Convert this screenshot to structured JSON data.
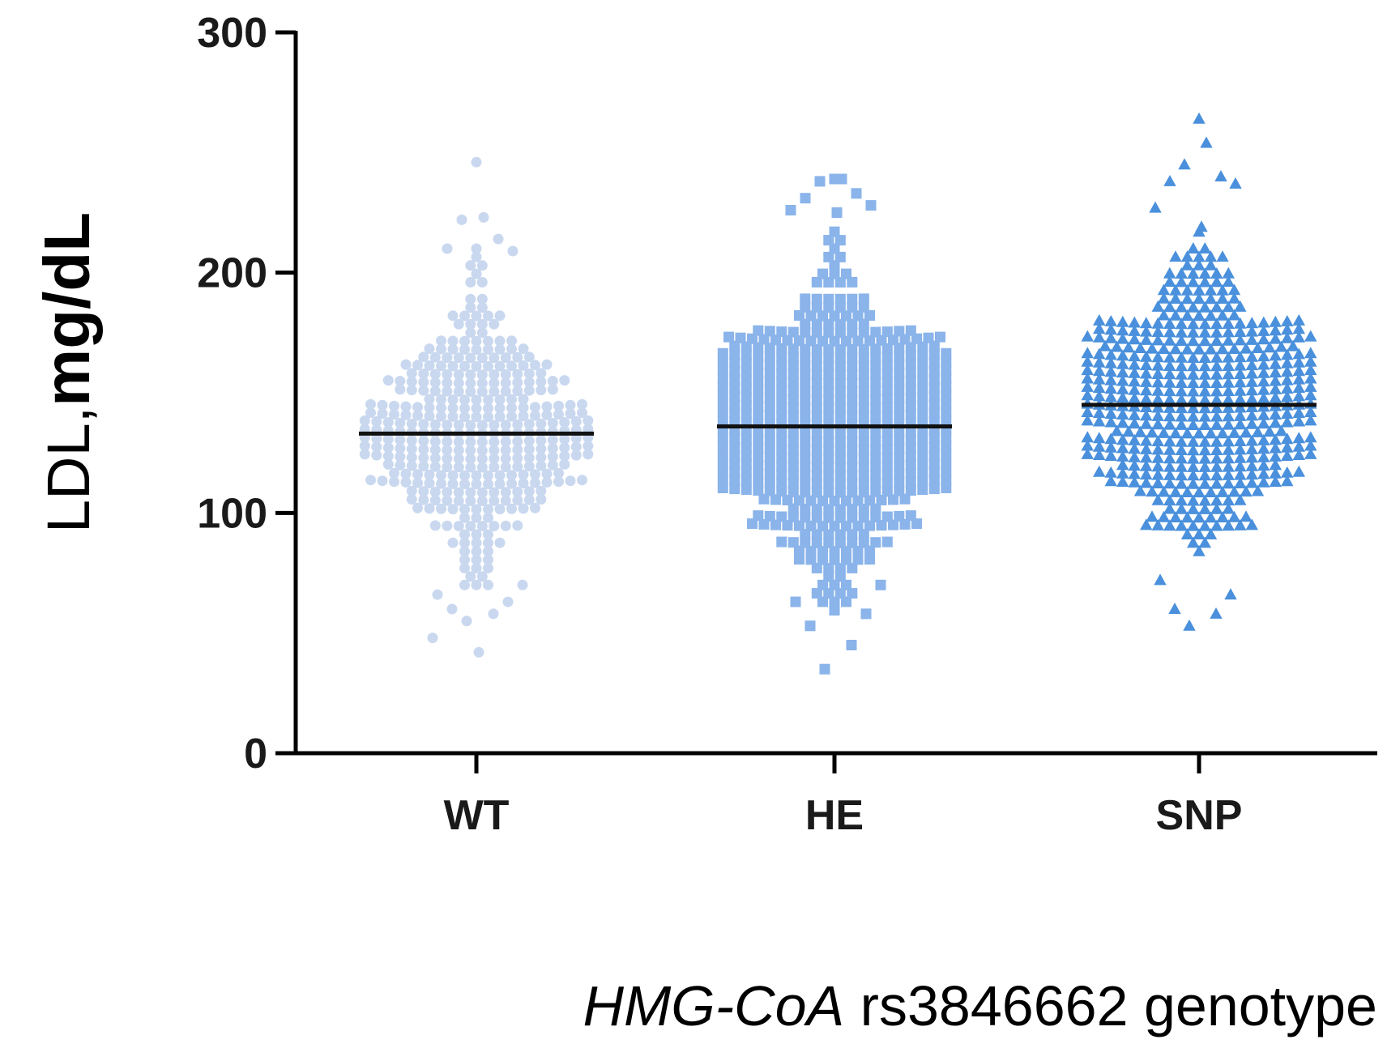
{
  "chart_data": {
    "type": "scatter",
    "subtype": "beeswarm",
    "title": "",
    "ylabel_prefix": "LDL,",
    "ylabel_unit": "mg/dL",
    "xlabel_gene": "HMG-CoA",
    "xlabel_rest": " rs3846662 genotype",
    "ylim": [
      0,
      300
    ],
    "yticks": [
      0,
      100,
      200,
      300
    ],
    "categories": [
      "WT",
      "HE",
      "SNP"
    ],
    "series": [
      {
        "name": "WT",
        "marker": "circle",
        "color": "#c9d8ef",
        "mean": 133,
        "n_approx": 380,
        "min": 42,
        "max": 246,
        "outliers": [
          246,
          223,
          222,
          214,
          210,
          209,
          48,
          42,
          55,
          58,
          60,
          63,
          66,
          70
        ]
      },
      {
        "name": "HE",
        "marker": "square",
        "color": "#8ab4ea",
        "mean": 136,
        "n_approx": 700,
        "min": 35,
        "max": 239,
        "outliers": [
          239,
          239,
          238,
          233,
          231,
          228,
          226,
          225,
          35,
          45,
          53,
          58,
          63,
          70
        ]
      },
      {
        "name": "SNP",
        "marker": "triangle",
        "color": "#4a90dc",
        "mean": 145,
        "n_approx": 560,
        "min": 53,
        "max": 264,
        "outliers": [
          264,
          254,
          245,
          240,
          238,
          237,
          227,
          219,
          53,
          58,
          60,
          66,
          72
        ]
      }
    ]
  }
}
